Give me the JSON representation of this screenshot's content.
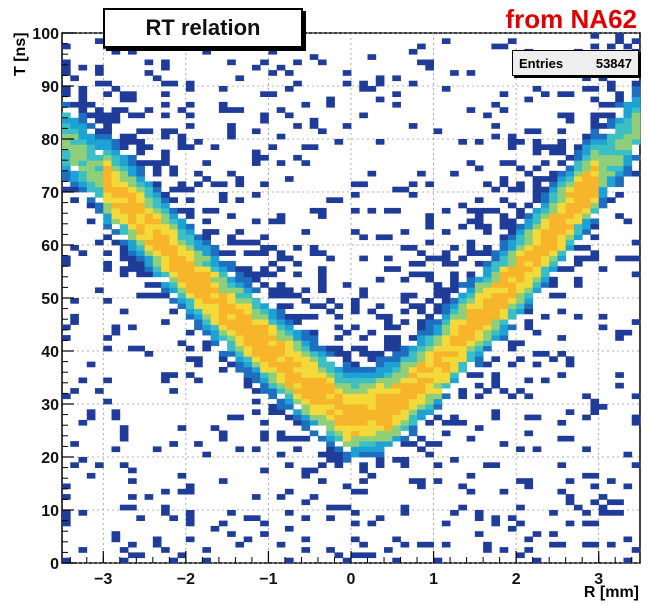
{
  "chart_data": {
    "type": "heatmap",
    "title": "RT relation",
    "source_note": "from NA62",
    "stats": {
      "label": "Entries",
      "value": "53847"
    },
    "xlabel": "R [mm]",
    "ylabel": "T [ns]",
    "xlim": [
      -3.5,
      3.5
    ],
    "ylim": [
      0,
      100
    ],
    "x_ticks": [
      -3,
      -2,
      -1,
      0,
      1,
      2,
      3
    ],
    "x_tick_labels": [
      "−3",
      "−2",
      "−1",
      "0",
      "1",
      "2",
      "3"
    ],
    "y_ticks": [
      0,
      10,
      20,
      30,
      40,
      50,
      60,
      70,
      80,
      90,
      100
    ],
    "y_tick_labels": [
      "0",
      "10",
      "20",
      "30",
      "40",
      "50",
      "60",
      "70",
      "80",
      "90",
      "100"
    ],
    "grid": true,
    "bins": {
      "x": 70,
      "y": 100
    },
    "colors": {
      "low": "#1f3c99",
      "mid": "#1ea1d4",
      "high": "#f4d93a",
      "peak": "#f6b52a"
    },
    "band_ridge": {
      "r": [
        -3.0,
        -2.5,
        -2.0,
        -1.5,
        -1.0,
        -0.5,
        0.0,
        0.5,
        1.0,
        1.5,
        2.0,
        2.5,
        3.0
      ],
      "t": [
        72,
        64,
        55,
        47,
        40,
        33,
        27,
        29,
        36,
        45,
        53,
        63,
        73
      ]
    }
  }
}
